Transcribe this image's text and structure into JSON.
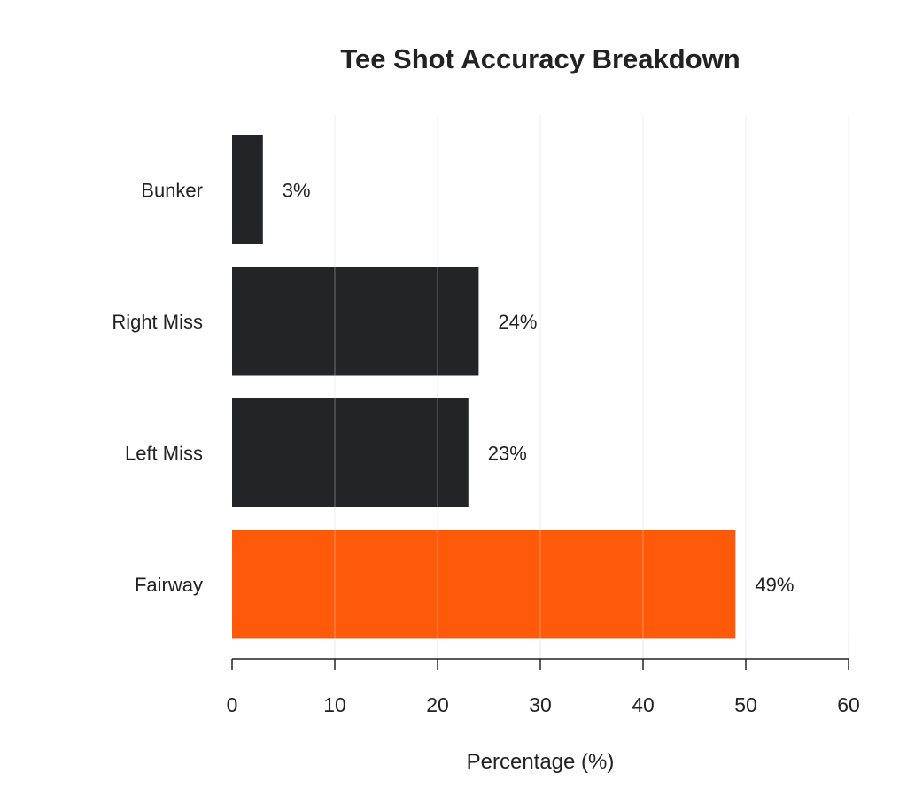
{
  "chart_data": {
    "type": "bar",
    "orientation": "horizontal",
    "title": "Tee Shot Accuracy Breakdown",
    "xlabel": "Percentage (%)",
    "ylabel": "",
    "categories": [
      "Fairway",
      "Left Miss",
      "Right Miss",
      "Bunker"
    ],
    "values": [
      49,
      23,
      24,
      3
    ],
    "data_labels": [
      "49%",
      "23%",
      "24%",
      "3%"
    ],
    "colors": [
      "#ff5a0a",
      "#232427",
      "#232427",
      "#232427"
    ],
    "xlim": [
      0,
      60
    ],
    "xticks": [
      0,
      10,
      20,
      30,
      40,
      50,
      60
    ],
    "xtick_labels": [
      "0",
      "10",
      "20",
      "30",
      "40",
      "50",
      "60"
    ],
    "grid": "vertical",
    "legend": "none"
  }
}
